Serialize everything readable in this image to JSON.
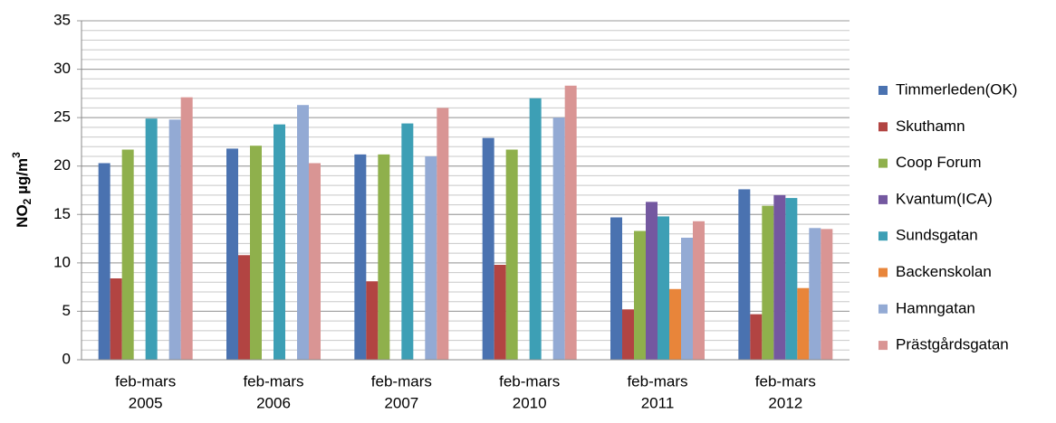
{
  "chart_data": {
    "type": "bar",
    "y_label": [
      "NO",
      "2",
      " µg/m",
      "3"
    ],
    "categories": [
      [
        "feb-mars",
        "2005"
      ],
      [
        "feb-mars",
        "2006"
      ],
      [
        "feb-mars",
        "2007"
      ],
      [
        "feb-mars",
        "2010"
      ],
      [
        "feb-mars",
        "2011"
      ],
      [
        "feb-mars",
        "2012"
      ]
    ],
    "series": [
      {
        "name": "Timmerleden(OK)",
        "color": "#4a72b0",
        "values": [
          20.3,
          21.8,
          21.2,
          22.9,
          14.7,
          17.6
        ]
      },
      {
        "name": "Skuthamn",
        "color": "#b24442",
        "values": [
          8.4,
          10.8,
          8.1,
          9.8,
          5.2,
          4.7
        ]
      },
      {
        "name": "Coop Forum",
        "color": "#8fb04c",
        "values": [
          21.7,
          22.1,
          21.2,
          21.7,
          13.3,
          15.9
        ]
      },
      {
        "name": "Kvantum(ICA)",
        "color": "#7458a0",
        "values": [
          null,
          null,
          null,
          null,
          16.3,
          17.0
        ]
      },
      {
        "name": "Sundsgatan",
        "color": "#3d9fb5",
        "values": [
          24.9,
          24.3,
          24.4,
          27.0,
          14.8,
          16.7
        ]
      },
      {
        "name": "Backenskolan",
        "color": "#e8853a",
        "values": [
          null,
          null,
          null,
          null,
          7.3,
          7.4
        ]
      },
      {
        "name": "Hamngatan",
        "color": "#93aad4",
        "values": [
          24.8,
          26.3,
          21.0,
          25.0,
          12.6,
          13.6
        ]
      },
      {
        "name": "Prästgårdsgatan",
        "color": "#d99594",
        "values": [
          27.1,
          20.3,
          26.0,
          28.3,
          14.3,
          13.5
        ]
      }
    ],
    "ylim": [
      0,
      35
    ],
    "yticks": [
      0,
      5,
      10,
      15,
      20,
      25,
      30,
      35
    ],
    "grid": true,
    "minor_grid": 1,
    "legend": "right"
  }
}
